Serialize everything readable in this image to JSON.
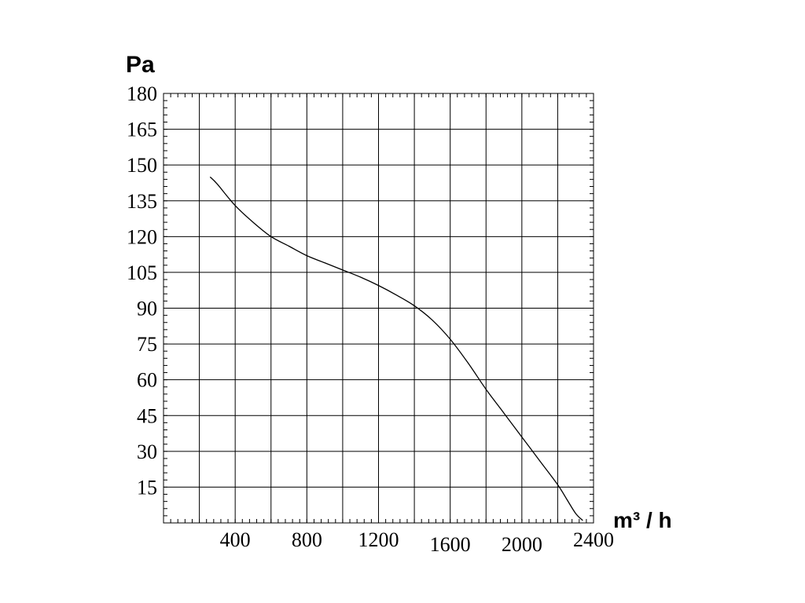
{
  "chart_data": {
    "type": "line",
    "title": "",
    "xlabel": "m³ / h",
    "ylabel": "Pa",
    "xlim": [
      0,
      2400
    ],
    "ylim": [
      0,
      180
    ],
    "x_ticks": [
      400,
      800,
      1200,
      1600,
      2000,
      2400
    ],
    "x_tick_labels": [
      "400",
      "800",
      "1200",
      "1600",
      "2000",
      "2400"
    ],
    "y_ticks": [
      15,
      30,
      45,
      60,
      75,
      90,
      105,
      120,
      135,
      150,
      165,
      180
    ],
    "y_tick_labels": [
      "15",
      "30",
      "45",
      "60",
      "75",
      "90",
      "105",
      "120",
      "135",
      "150",
      "165",
      "180"
    ],
    "grid": true,
    "x_grid_step": 200,
    "y_grid_step": 15,
    "series": [
      {
        "x": [
          260,
          300,
          400,
          500,
          600,
          700,
          800,
          900,
          1000,
          1100,
          1200,
          1300,
          1400,
          1500,
          1600,
          1700,
          1800,
          1900,
          2000,
          2100,
          2200,
          2250,
          2300,
          2340
        ],
        "y": [
          145,
          142,
          133,
          126,
          120,
          116,
          112,
          109,
          106,
          103,
          99.5,
          95.5,
          91,
          85,
          77,
          67,
          56,
          46,
          36,
          26,
          16,
          10,
          4,
          1
        ]
      }
    ],
    "line_color": "#000000"
  }
}
